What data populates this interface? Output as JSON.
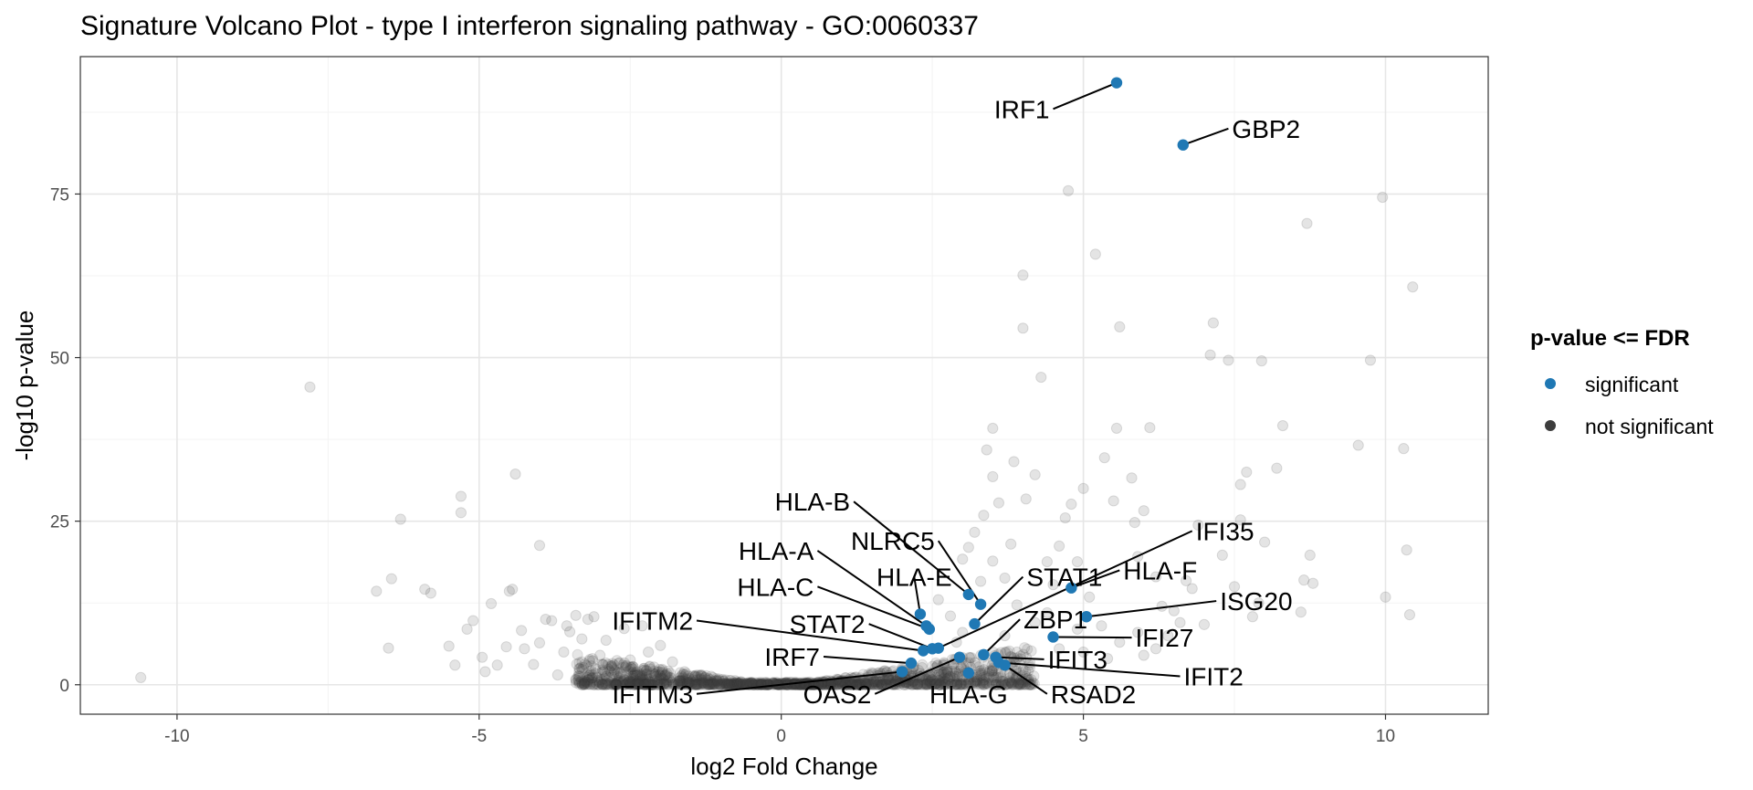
{
  "chart_data": {
    "type": "scatter",
    "title": "Signature Volcano Plot - type I interferon signaling pathway - GO:0060337",
    "xlabel": "log2 Fold Change",
    "ylabel": "-log10 p-value",
    "xlim": [
      -11.6,
      11.7
    ],
    "ylim": [
      -4.5,
      96
    ],
    "xticks": [
      -10,
      -5,
      0,
      5,
      10
    ],
    "yticks": [
      0,
      25,
      50,
      75
    ],
    "grid": true,
    "legend": {
      "title": "p-value <= FDR",
      "position": "right",
      "entries": [
        {
          "label": "significant",
          "color": "#1f78b4"
        },
        {
          "label": "not significant",
          "color": "#3d3d3d"
        }
      ]
    },
    "colors": {
      "significant": "#1f78b4",
      "not_significant": "#3d3d3d"
    },
    "significant_genes": [
      {
        "gene": "IRF1",
        "x": 5.55,
        "y": 92.0,
        "label_x": 4.5,
        "label_y": 88.0
      },
      {
        "gene": "GBP2",
        "x": 6.65,
        "y": 82.5,
        "label_x": 7.4,
        "label_y": 85.0
      },
      {
        "gene": "HLA-B",
        "x": 3.1,
        "y": 13.8,
        "label_x": 1.2,
        "label_y": 28.0
      },
      {
        "gene": "NLRC5",
        "x": 3.3,
        "y": 12.3,
        "label_x": 2.6,
        "label_y": 22.0
      },
      {
        "gene": "HLA-A",
        "x": 2.4,
        "y": 9.0,
        "label_x": 0.6,
        "label_y": 20.5
      },
      {
        "gene": "HLA-E",
        "x": 2.3,
        "y": 10.8,
        "label_x": 2.2,
        "label_y": 16.5
      },
      {
        "gene": "HLA-C",
        "x": 2.45,
        "y": 8.5,
        "label_x": 0.6,
        "label_y": 15.0
      },
      {
        "gene": "STAT1",
        "x": 3.2,
        "y": 9.3,
        "label_x": 4.0,
        "label_y": 16.5
      },
      {
        "gene": "HLA-F",
        "x": 4.8,
        "y": 14.8,
        "label_x": 5.6,
        "label_y": 17.5
      },
      {
        "gene": "IFI35",
        "x": 2.6,
        "y": 5.6,
        "label_x": 6.8,
        "label_y": 23.5
      },
      {
        "gene": "ISG20",
        "x": 5.05,
        "y": 10.4,
        "label_x": 7.2,
        "label_y": 12.8
      },
      {
        "gene": "IFITM2",
        "x": 2.35,
        "y": 5.2,
        "label_x": -1.4,
        "label_y": 9.8
      },
      {
        "gene": "STAT2",
        "x": 2.5,
        "y": 5.5,
        "label_x": 1.45,
        "label_y": 9.3
      },
      {
        "gene": "ZBP1",
        "x": 3.35,
        "y": 4.6,
        "label_x": 3.95,
        "label_y": 10.0
      },
      {
        "gene": "IFI27",
        "x": 4.5,
        "y": 7.3,
        "label_x": 5.8,
        "label_y": 7.2
      },
      {
        "gene": "IRF7",
        "x": 2.15,
        "y": 3.3,
        "label_x": 0.7,
        "label_y": 4.3
      },
      {
        "gene": "IFIT3",
        "x": 3.55,
        "y": 4.2,
        "label_x": 4.35,
        "label_y": 3.9
      },
      {
        "gene": "IFIT2",
        "x": 3.6,
        "y": 3.4,
        "label_x": 6.6,
        "label_y": 1.3
      },
      {
        "gene": "RSAD2",
        "x": 3.7,
        "y": 3.0,
        "label_x": 4.4,
        "label_y": -1.4
      },
      {
        "gene": "HLA-G",
        "x": 3.1,
        "y": 1.8,
        "label_x": 3.1,
        "label_y": -1.4
      },
      {
        "gene": "OAS2",
        "x": 2.95,
        "y": 4.2,
        "label_x": 1.55,
        "label_y": -1.4
      },
      {
        "gene": "IFITM3",
        "x": 2.0,
        "y": 2.0,
        "label_x": -1.4,
        "label_y": -1.4
      }
    ],
    "background_points": [
      [
        -10.6,
        1.1
      ],
      [
        -7.8,
        45.5
      ],
      [
        -6.7,
        14.3
      ],
      [
        -6.45,
        16.2
      ],
      [
        -6.5,
        5.6
      ],
      [
        -6.3,
        25.3
      ],
      [
        -5.9,
        14.6
      ],
      [
        -5.8,
        14.0
      ],
      [
        -5.5,
        5.9
      ],
      [
        -5.4,
        3.0
      ],
      [
        -5.3,
        26.3
      ],
      [
        -5.3,
        28.8
      ],
      [
        -5.2,
        8.5
      ],
      [
        -5.1,
        9.8
      ],
      [
        -4.95,
        4.2
      ],
      [
        -4.9,
        2.0
      ],
      [
        -4.8,
        12.4
      ],
      [
        -4.7,
        3.0
      ],
      [
        -4.55,
        5.8
      ],
      [
        -4.5,
        14.3
      ],
      [
        -4.45,
        14.6
      ],
      [
        -4.4,
        32.2
      ],
      [
        -4.3,
        8.3
      ],
      [
        -4.25,
        5.5
      ],
      [
        -4.1,
        3.1
      ],
      [
        -4.0,
        6.4
      ],
      [
        -4.0,
        21.3
      ],
      [
        -3.9,
        10.0
      ],
      [
        -3.8,
        9.8
      ],
      [
        -3.7,
        1.5
      ],
      [
        -3.6,
        5.0
      ],
      [
        -3.55,
        9.0
      ],
      [
        -3.5,
        8.1
      ],
      [
        -3.4,
        10.6
      ],
      [
        -3.3,
        7.0
      ],
      [
        -3.2,
        10.0
      ],
      [
        -3.1,
        10.4
      ],
      [
        -3.0,
        4.5
      ],
      [
        -2.9,
        6.8
      ],
      [
        -2.8,
        2.6
      ],
      [
        -2.6,
        8.6
      ],
      [
        -2.5,
        3.8
      ],
      [
        -2.3,
        9.0
      ],
      [
        -2.2,
        5.0
      ],
      [
        -2.0,
        6.0
      ],
      [
        -1.8,
        3.5
      ],
      [
        -1.6,
        2.0
      ],
      [
        -1.4,
        1.2
      ],
      [
        3.0,
        19.2
      ],
      [
        3.2,
        23.3
      ],
      [
        3.35,
        25.9
      ],
      [
        3.5,
        18.9
      ],
      [
        3.1,
        21.0
      ],
      [
        3.6,
        27.8
      ],
      [
        3.3,
        15.8
      ],
      [
        3.7,
        16.3
      ],
      [
        3.8,
        21.5
      ],
      [
        3.9,
        12.2
      ],
      [
        3.4,
        35.9
      ],
      [
        3.5,
        31.8
      ],
      [
        3.5,
        39.2
      ],
      [
        3.85,
        34.1
      ],
      [
        4.05,
        28.4
      ],
      [
        4.2,
        32.1
      ],
      [
        4.0,
        62.6
      ],
      [
        4.0,
        54.5
      ],
      [
        4.3,
        47.0
      ],
      [
        4.4,
        18.8
      ],
      [
        4.5,
        15.3
      ],
      [
        4.6,
        21.2
      ],
      [
        4.7,
        25.5
      ],
      [
        4.75,
        75.5
      ],
      [
        4.8,
        27.6
      ],
      [
        4.9,
        18.8
      ],
      [
        5.0,
        30.0
      ],
      [
        5.1,
        13.4
      ],
      [
        5.2,
        65.8
      ],
      [
        5.35,
        34.7
      ],
      [
        5.5,
        28.1
      ],
      [
        5.55,
        39.2
      ],
      [
        5.6,
        54.7
      ],
      [
        5.8,
        31.6
      ],
      [
        5.85,
        24.8
      ],
      [
        5.9,
        19.6
      ],
      [
        6.0,
        26.6
      ],
      [
        6.1,
        39.3
      ],
      [
        6.2,
        16.5
      ],
      [
        6.3,
        12.0
      ],
      [
        6.5,
        11.3
      ],
      [
        6.7,
        15.9
      ],
      [
        6.8,
        14.7
      ],
      [
        6.9,
        24.4
      ],
      [
        7.0,
        9.2
      ],
      [
        7.1,
        50.4
      ],
      [
        7.15,
        55.3
      ],
      [
        7.3,
        19.8
      ],
      [
        7.4,
        49.6
      ],
      [
        7.5,
        15.0
      ],
      [
        7.6,
        25.2
      ],
      [
        7.6,
        30.6
      ],
      [
        7.7,
        32.5
      ],
      [
        7.8,
        10.4
      ],
      [
        7.9,
        12.5
      ],
      [
        7.95,
        49.5
      ],
      [
        8.0,
        21.8
      ],
      [
        8.2,
        33.1
      ],
      [
        8.3,
        39.6
      ],
      [
        8.6,
        11.1
      ],
      [
        8.65,
        16.0
      ],
      [
        8.7,
        70.5
      ],
      [
        8.75,
        19.8
      ],
      [
        8.8,
        15.5
      ],
      [
        9.55,
        36.6
      ],
      [
        9.75,
        49.6
      ],
      [
        9.95,
        74.5
      ],
      [
        10.0,
        13.4
      ],
      [
        10.3,
        36.1
      ],
      [
        10.35,
        20.6
      ],
      [
        10.4,
        10.7
      ],
      [
        10.45,
        60.8
      ],
      [
        2.6,
        13.0
      ],
      [
        2.8,
        10.5
      ],
      [
        3.0,
        8.0
      ],
      [
        4.2,
        9.5
      ],
      [
        4.4,
        11.0
      ],
      [
        5.3,
        9.0
      ],
      [
        5.6,
        6.5
      ],
      [
        5.9,
        8.0
      ],
      [
        6.2,
        5.5
      ],
      [
        6.4,
        7.5
      ],
      [
        6.6,
        9.5
      ],
      [
        5.0,
        5.0
      ],
      [
        5.4,
        4.0
      ],
      [
        6.0,
        4.5
      ],
      [
        4.6,
        5.5
      ],
      [
        4.9,
        8.5
      ],
      [
        3.9,
        5.0
      ],
      [
        3.7,
        7.5
      ],
      [
        2.9,
        6.5
      ],
      [
        2.7,
        3.0
      ]
    ],
    "cloud": {
      "x_min": -3.4,
      "x_max": 4.2,
      "note": "dense band of non-significant genes near y=0"
    }
  }
}
